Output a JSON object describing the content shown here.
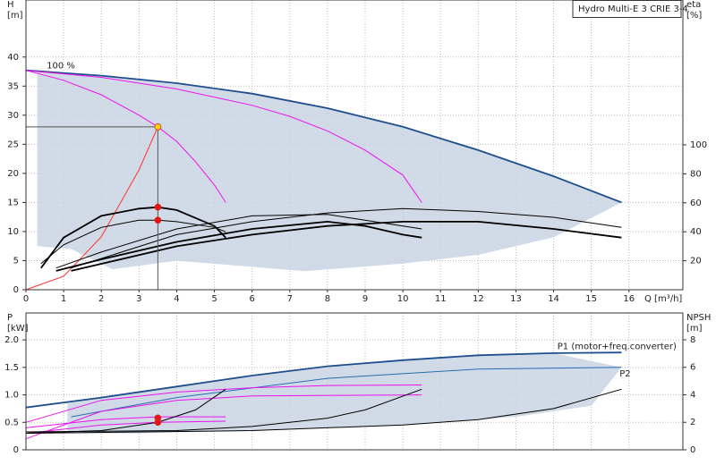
{
  "chart_data": [
    {
      "type": "line",
      "legend_title": "Hydro Multi-E 3 CRIE 3-4",
      "ylabel": [
        "H",
        "[m]"
      ],
      "y2label": [
        "eta",
        "[%]"
      ],
      "xlabel": "Q [m³/h]",
      "xlim": [
        0,
        17.43
      ],
      "xticks": [
        0,
        1,
        2,
        3,
        4,
        5,
        6,
        7,
        8,
        9,
        10,
        11,
        12,
        13,
        14,
        15,
        16
      ],
      "ylim": [
        0,
        49.8
      ],
      "yticks": [
        0,
        5,
        10,
        15,
        20,
        25,
        30,
        35,
        40
      ],
      "y2lim": [
        0,
        200
      ],
      "y2ticks": [
        20,
        40,
        60,
        80,
        100
      ],
      "grid": true,
      "series": [
        {
          "kind": "area",
          "color": "#c9d5e3",
          "x": [
            0.3,
            0.3,
            1.2,
            2.3,
            4,
            7.4,
            10,
            12,
            14,
            15.8,
            14,
            12,
            10,
            8,
            6,
            4,
            2,
            0.3
          ],
          "values": [
            37.7,
            7.5,
            7,
            3.5,
            5,
            3.2,
            4.5,
            6,
            9,
            15,
            19.5,
            24,
            28,
            31.2,
            33.7,
            35.5,
            36.8,
            37.7
          ]
        },
        {
          "kind": "line",
          "color": "#1f4e8c",
          "bold": true,
          "x": [
            0,
            2,
            4,
            6,
            8,
            10,
            12,
            14,
            15.8
          ],
          "values": [
            37.7,
            36.8,
            35.5,
            33.7,
            31.2,
            28,
            24,
            19.5,
            15
          ]
        },
        {
          "kind": "line",
          "color": "#ee11ee",
          "x": [
            0,
            1,
            2,
            3,
            3.5,
            4,
            4.5,
            5,
            5.3
          ],
          "values": [
            37.7,
            36,
            33.5,
            30,
            28,
            25.5,
            22,
            18,
            15
          ]
        },
        {
          "kind": "line",
          "color": "#ee11ee",
          "x": [
            0,
            2,
            4,
            6,
            7,
            8,
            9,
            10,
            10.5
          ],
          "values": [
            37.7,
            36.5,
            34.5,
            31.7,
            29.8,
            27.3,
            24,
            19.7,
            15
          ]
        },
        {
          "kind": "line",
          "color": "#ff3030",
          "x": [
            0,
            1,
            2,
            3,
            3.5
          ],
          "values": [
            0,
            2.3,
            9.1,
            20.6,
            28
          ]
        },
        {
          "kind": "line",
          "color": "#000000",
          "bold": true,
          "axis": "y2",
          "x": [
            0.4,
            1,
            2,
            3,
            3.5,
            4,
            5,
            5.3
          ],
          "values": [
            15,
            36,
            51,
            56,
            57,
            55,
            44,
            36
          ]
        },
        {
          "kind": "line",
          "color": "#000000",
          "axis": "y2",
          "x": [
            0.4,
            1,
            2,
            3,
            3.5,
            4,
            5,
            5.3
          ],
          "values": [
            18,
            31,
            43,
            48,
            48,
            47,
            43,
            40
          ]
        },
        {
          "kind": "line",
          "color": "#000000",
          "axis": "y2",
          "x": [
            0.8,
            2,
            4,
            6,
            8,
            10,
            10.5
          ],
          "values": [
            15,
            26,
            42,
            51,
            52,
            44,
            42
          ]
        },
        {
          "kind": "line",
          "color": "#000000",
          "bold": true,
          "axis": "y2",
          "x": [
            0.8,
            2,
            4,
            6,
            8,
            9,
            10,
            10.5
          ],
          "values": [
            13,
            21,
            33,
            42,
            47,
            44,
            38,
            36
          ]
        },
        {
          "kind": "line",
          "color": "#000000",
          "axis": "y2",
          "x": [
            1.2,
            4,
            6,
            8,
            10,
            12,
            14,
            15.8
          ],
          "values": [
            15,
            38,
            47,
            53,
            56,
            54,
            50,
            43
          ]
        },
        {
          "kind": "line",
          "color": "#000000",
          "bold": true,
          "axis": "y2",
          "x": [
            1.2,
            4,
            6,
            8,
            10,
            12,
            14,
            15.8
          ],
          "values": [
            13,
            30,
            38,
            44,
            47,
            47,
            42,
            36
          ]
        }
      ],
      "points": [
        {
          "x": 3.5,
          "y": 28,
          "color": "#ffd700",
          "guides": true
        },
        {
          "x": 3.5,
          "y": 57,
          "color": "#ee1111",
          "axis": "y2"
        },
        {
          "x": 3.5,
          "y": 48,
          "color": "#ee1111",
          "axis": "y2"
        }
      ],
      "annotations": [
        {
          "text": "100 %",
          "x": 0.55,
          "y": 38.5
        }
      ]
    },
    {
      "type": "line",
      "ylabel": [
        "P",
        "[kW]"
      ],
      "y2label": [
        "NPSH",
        "[m]"
      ],
      "xlim": [
        0,
        17.43
      ],
      "ylim": [
        0,
        2.49
      ],
      "yticks": [
        0,
        {
          "value": 0.5,
          "label": "0.5"
        },
        {
          "value": 1,
          "label": "1.0"
        },
        {
          "value": 1.5,
          "label": "1.5"
        },
        {
          "value": 2,
          "label": "2.0"
        }
      ],
      "y2lim": [
        0,
        9.95
      ],
      "y2ticks": [
        0,
        2,
        4,
        6,
        8
      ],
      "grid": true,
      "series": [
        {
          "kind": "area",
          "color": "#c9d5e3",
          "x": [
            1.1,
            3,
            6,
            10,
            13,
            15,
            15.8,
            14,
            12,
            10,
            8,
            6,
            4,
            2,
            1.1
          ],
          "values": [
            0.3,
            0.3,
            0.35,
            0.45,
            0.6,
            0.8,
            1.5,
            1.76,
            1.72,
            1.63,
            1.52,
            1.35,
            1.15,
            0.95,
            0.85
          ]
        },
        {
          "kind": "line",
          "color": "#1f4e8c",
          "bold": true,
          "x": [
            0,
            2,
            4,
            6,
            8,
            10,
            12,
            14,
            15.8
          ],
          "values": [
            0.77,
            0.95,
            1.15,
            1.35,
            1.52,
            1.63,
            1.72,
            1.76,
            1.77
          ]
        },
        {
          "kind": "line",
          "color": "#2a6cb0",
          "x": [
            1.2,
            4,
            8,
            12,
            15.8
          ],
          "values": [
            0.6,
            0.95,
            1.3,
            1.47,
            1.5
          ]
        },
        {
          "kind": "line",
          "color": "#ee11ee",
          "x": [
            0,
            2,
            3.5,
            5.3
          ],
          "values": [
            0.4,
            0.55,
            0.6,
            0.6
          ]
        },
        {
          "kind": "line",
          "color": "#ee11ee",
          "x": [
            0,
            2,
            3.5,
            5.3
          ],
          "values": [
            0.3,
            0.45,
            0.5,
            0.52
          ]
        },
        {
          "kind": "line",
          "color": "#ee11ee",
          "x": [
            0,
            2,
            4,
            6,
            8,
            10.5
          ],
          "values": [
            0.5,
            0.9,
            1.05,
            1.13,
            1.17,
            1.18
          ]
        },
        {
          "kind": "line",
          "color": "#ee11ee",
          "x": [
            0,
            2,
            4,
            6,
            10.5
          ],
          "values": [
            0.2,
            0.7,
            0.9,
            0.98,
            1.0
          ]
        },
        {
          "kind": "line",
          "color": "#000000",
          "axis": "y2",
          "x": [
            0,
            2,
            3.5,
            4.5,
            5.3
          ],
          "values": [
            1.2,
            1.4,
            2,
            2.9,
            4.4
          ]
        },
        {
          "kind": "line",
          "color": "#000000",
          "axis": "y2",
          "x": [
            0,
            4,
            6,
            8,
            9,
            10.5
          ],
          "values": [
            1.3,
            1.4,
            1.7,
            2.3,
            2.9,
            4.4
          ]
        },
        {
          "kind": "line",
          "color": "#000000",
          "axis": "y2",
          "x": [
            0,
            6,
            10,
            12,
            14,
            15.8
          ],
          "values": [
            1.2,
            1.4,
            1.8,
            2.2,
            3,
            4.4
          ]
        }
      ],
      "points": [
        {
          "x": 3.5,
          "y": 0.58,
          "color": "#ee1111"
        },
        {
          "x": 3.5,
          "y": 0.5,
          "color": "#ee1111"
        }
      ],
      "annotations": [
        {
          "text": "P1 (motor+freq.converter)",
          "x": 14.1,
          "y": 1.88
        },
        {
          "text": "P2",
          "x": 15.75,
          "y": 1.38
        }
      ]
    }
  ]
}
